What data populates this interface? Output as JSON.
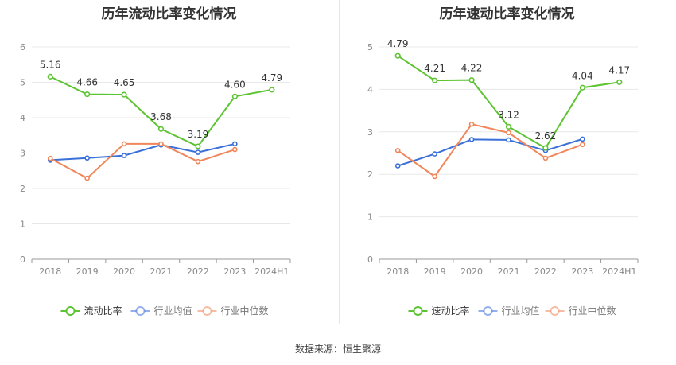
{
  "source": "数据来源：恒生聚源",
  "colors": {
    "main": "#5cc431",
    "avg": "#3b70d9",
    "median": "#f0865a"
  },
  "chart_data": [
    {
      "type": "line",
      "title": "历年流动比率变化情况",
      "categories": [
        "2018",
        "2019",
        "2020",
        "2021",
        "2022",
        "2023",
        "2024H1"
      ],
      "ylim": [
        0,
        6
      ],
      "yticks": [
        0,
        1,
        2,
        3,
        4,
        5,
        6
      ],
      "grid": true,
      "legend_position": "bottom",
      "series": [
        {
          "name": "流动比率",
          "values": [
            5.16,
            4.66,
            4.65,
            3.68,
            3.19,
            4.6,
            4.79
          ],
          "labels": [
            "5.16",
            "4.66",
            "4.65",
            "3.68",
            "3.19",
            "4.60",
            "4.79"
          ]
        },
        {
          "name": "行业均值",
          "values": [
            2.8,
            2.86,
            2.93,
            3.23,
            3.02,
            3.26,
            null
          ]
        },
        {
          "name": "行业中位数",
          "values": [
            2.85,
            2.29,
            3.26,
            3.26,
            2.76,
            3.1,
            null
          ]
        }
      ]
    },
    {
      "type": "line",
      "title": "历年速动比率变化情况",
      "categories": [
        "2018",
        "2019",
        "2020",
        "2021",
        "2022",
        "2023",
        "2024H1"
      ],
      "ylim": [
        0,
        5
      ],
      "yticks": [
        0,
        1,
        2,
        3,
        4,
        5
      ],
      "grid": true,
      "legend_position": "bottom",
      "series": [
        {
          "name": "速动比率",
          "values": [
            4.79,
            4.21,
            4.22,
            3.12,
            2.62,
            4.04,
            4.17
          ],
          "labels": [
            "4.79",
            "4.21",
            "4.22",
            "3.12",
            "2.62",
            "4.04",
            "4.17"
          ]
        },
        {
          "name": "行业均值",
          "values": [
            2.2,
            2.48,
            2.82,
            2.81,
            2.56,
            2.83,
            null
          ]
        },
        {
          "name": "行业中位数",
          "values": [
            2.56,
            1.95,
            3.18,
            2.98,
            2.38,
            2.7,
            null
          ]
        }
      ]
    }
  ]
}
